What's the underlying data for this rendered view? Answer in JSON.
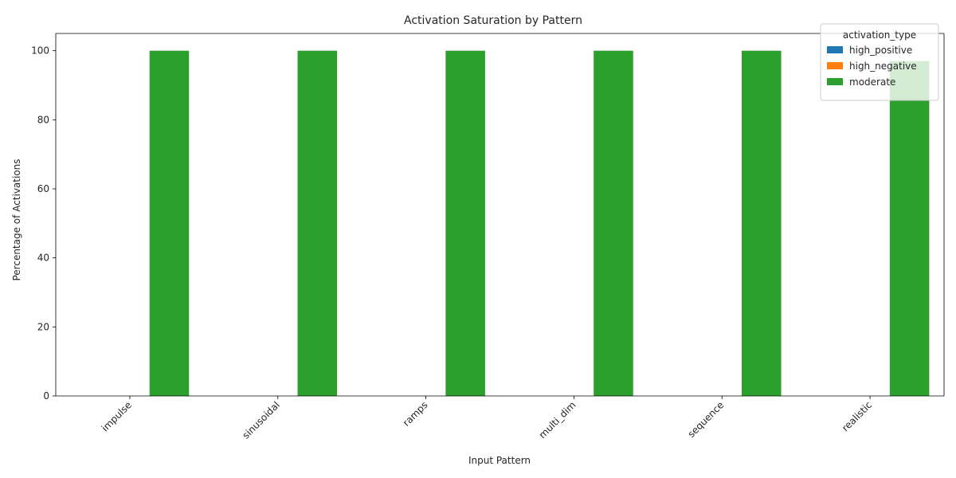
{
  "chart_data": {
    "type": "bar",
    "title": "Activation Saturation by Pattern",
    "xlabel": "Input Pattern",
    "ylabel": "Percentage of Activations",
    "categories": [
      "impulse",
      "sinusoidal",
      "ramps",
      "multi_dim",
      "sequence",
      "realistic"
    ],
    "series": [
      {
        "name": "high_positive",
        "color": "#1f77b4",
        "values": [
          0,
          0,
          0,
          0,
          0,
          0
        ]
      },
      {
        "name": "high_negative",
        "color": "#ff7f0e",
        "values": [
          0,
          0,
          0,
          0,
          0,
          0
        ]
      },
      {
        "name": "moderate",
        "color": "#2ca02c",
        "values": [
          100,
          100,
          100,
          100,
          100,
          97
        ]
      }
    ],
    "ylim": [
      0,
      105
    ],
    "yticks": [
      0,
      20,
      40,
      60,
      80,
      100
    ],
    "legend": {
      "title": "activation_type",
      "placement": "top-right"
    },
    "grid": false
  }
}
